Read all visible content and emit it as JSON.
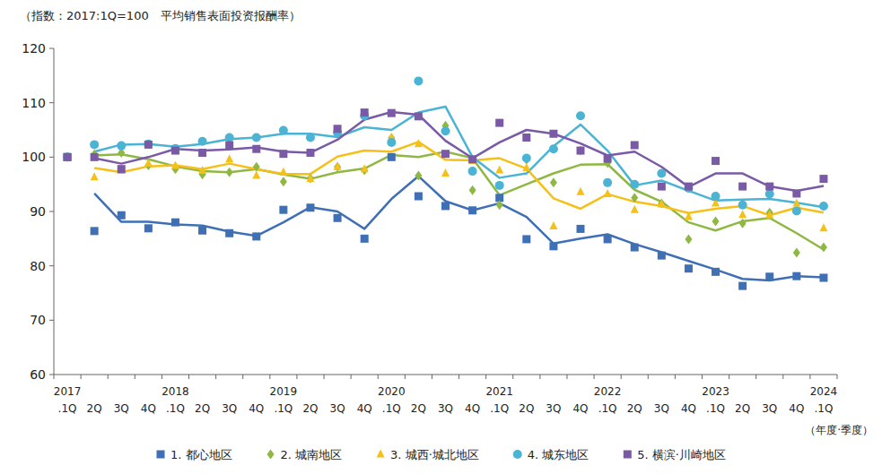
{
  "chart_data": {
    "type": "line",
    "y_label": "（指数：2017:1Q=100　平均销售表面投资报酬率）",
    "x_label": "（年度·季度）",
    "categories": [
      "2017.1Q",
      "2Q",
      "3Q",
      "4Q",
      "2018.1Q",
      "2Q",
      "3Q",
      "4Q",
      "2019.1Q",
      "2Q",
      "3Q",
      "4Q",
      "2020.1Q",
      "2Q",
      "3Q",
      "4Q",
      "2021.1Q",
      "2Q",
      "3Q",
      "4Q",
      "2022.1Q",
      "2Q",
      "3Q",
      "4Q",
      "2023.1Q",
      "2Q",
      "3Q",
      "4Q",
      "2024.1Q"
    ],
    "ylim": [
      60,
      120
    ],
    "yticks": [
      60,
      70,
      80,
      90,
      100,
      110,
      120
    ],
    "grid": false,
    "legend": "bottom",
    "series": [
      {
        "name": "1. 都心地区",
        "color": "#3f6fb5",
        "marker": "square",
        "values": [
          100,
          86.4,
          89.3,
          86.9,
          88.0,
          86.5,
          86.0,
          85.4,
          90.3,
          90.7,
          88.8,
          85.0,
          100.0,
          92.8,
          91.0,
          90.2,
          92.5,
          84.9,
          83.6,
          86.8,
          84.9,
          83.4,
          81.9,
          79.5,
          78.9,
          76.3,
          78.0,
          78.1,
          77.8
        ],
        "trend": [
          null,
          93.3,
          88.1,
          88.1,
          87.6,
          87.4,
          86.3,
          85.5,
          88.0,
          90.8,
          90.0,
          86.8,
          92.3,
          96.5,
          91.9,
          90.2,
          91.5,
          89.0,
          84.1,
          85.0,
          85.8,
          84.0,
          82.5,
          80.9,
          79.3,
          77.6,
          77.3,
          78.1,
          77.9
        ]
      },
      {
        "name": "2. 城南地区",
        "color": "#8fb843",
        "marker": "diamond",
        "values": [
          100,
          100.5,
          100.8,
          98.5,
          97.8,
          96.8,
          97.2,
          98.2,
          95.5,
          96.1,
          98.2,
          97.6,
          103.5,
          96.6,
          105.8,
          93.9,
          91.2,
          99.5,
          95.3,
          101.2,
          98.9,
          92.5,
          91.5,
          84.9,
          88.2,
          87.8,
          89.8,
          82.4,
          83.4
        ],
        "trend": [
          null,
          100.3,
          100.5,
          99.6,
          98.3,
          97.4,
          97.2,
          97.8,
          96.8,
          96.0,
          97.2,
          97.9,
          100.4,
          100.0,
          101.0,
          99.8,
          93.0,
          95.0,
          97.0,
          98.6,
          98.7,
          94.0,
          91.8,
          88.0,
          86.5,
          88.2,
          88.8,
          86.0,
          83.0
        ]
      },
      {
        "name": "3. 城西·城北地区",
        "color": "#f5c018",
        "marker": "triangle",
        "values": [
          100,
          96.3,
          97.5,
          98.8,
          98.4,
          97.5,
          99.6,
          96.6,
          97.2,
          96.0,
          98.2,
          97.8,
          103.6,
          102.4,
          97.0,
          99.3,
          97.6,
          98.0,
          87.3,
          93.6,
          93.2,
          90.3,
          91.3,
          89.0,
          91.5,
          89.4,
          89.3,
          91.5,
          86.9
        ],
        "trend": [
          null,
          98.0,
          97.2,
          98.3,
          98.5,
          97.8,
          98.8,
          97.8,
          96.9,
          96.9,
          100.1,
          101.2,
          101.0,
          102.8,
          99.5,
          99.4,
          99.8,
          97.9,
          92.4,
          90.5,
          93.2,
          91.8,
          91.0,
          89.7,
          90.5,
          91.0,
          89.3,
          90.7,
          89.8
        ]
      },
      {
        "name": "4. 城东地区",
        "color": "#4bb3d3",
        "marker": "circle",
        "values": [
          100,
          102.3,
          102.1,
          102.4,
          101.6,
          102.9,
          103.6,
          103.6,
          104.9,
          103.6,
          104.5,
          107.6,
          102.7,
          114.0,
          104.8,
          97.4,
          94.8,
          99.8,
          101.5,
          107.6,
          95.3,
          95.0,
          97.0,
          94.3,
          92.8,
          91.2,
          93.2,
          90.1,
          91.0
        ],
        "trend": [
          null,
          101.0,
          102.3,
          102.4,
          101.9,
          102.4,
          103.3,
          103.6,
          104.3,
          104.3,
          103.7,
          105.5,
          105.0,
          108.2,
          109.3,
          100.0,
          96.2,
          97.0,
          102.0,
          106.0,
          101.2,
          94.8,
          95.7,
          93.8,
          92.0,
          92.2,
          92.3,
          91.6,
          90.8
        ]
      },
      {
        "name": "5. 横滨·川崎地区",
        "color": "#7a5aa6",
        "marker": "square",
        "values": [
          100,
          100.0,
          97.8,
          102.3,
          101.2,
          100.8,
          102.2,
          101.5,
          100.6,
          100.8,
          105.2,
          108.2,
          108.1,
          107.5,
          100.6,
          99.6,
          106.3,
          103.6,
          104.3,
          101.2,
          99.7,
          102.2,
          94.6,
          94.6,
          99.3,
          94.6,
          94.6,
          93.3,
          96.0
        ],
        "trend": [
          null,
          99.8,
          98.8,
          100.0,
          101.5,
          101.2,
          101.4,
          101.8,
          101.0,
          100.8,
          103.2,
          106.9,
          108.3,
          107.8,
          103.0,
          99.8,
          102.7,
          105.0,
          104.3,
          102.5,
          100.3,
          101.0,
          98.2,
          94.5,
          97.0,
          97.0,
          94.6,
          93.8,
          94.7
        ]
      }
    ]
  }
}
